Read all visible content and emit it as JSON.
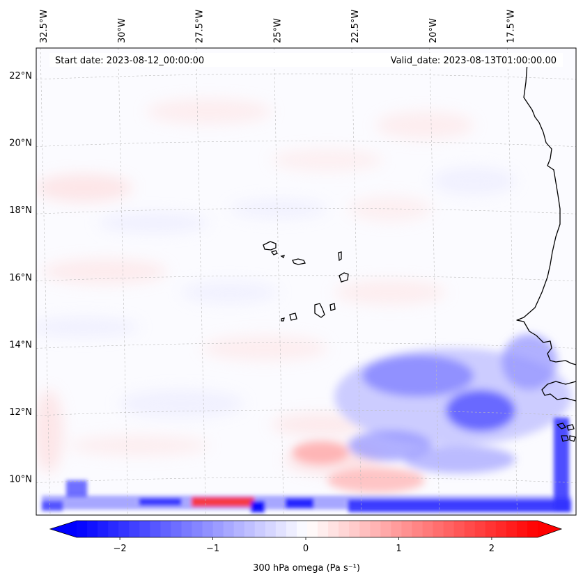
{
  "header": {
    "start_date": "Start date: 2023-08-12_00:00:00",
    "valid_date": "Valid_date: 2023-08-13T01:00:00.00"
  },
  "axes": {
    "longitude_labels": [
      "32.5°W",
      "30°W",
      "27.5°W",
      "25°W",
      "22.5°W",
      "20°W",
      "17.5°W"
    ],
    "latitude_labels": [
      "22°N",
      "20°N",
      "18°N",
      "16°N",
      "14°N",
      "12°N",
      "10°N"
    ],
    "longitudes_deg": [
      -32.5,
      -30,
      -27.5,
      -25,
      -22.5,
      -20,
      -17.5
    ],
    "latitudes_deg": [
      22,
      20,
      18,
      16,
      14,
      12,
      10
    ],
    "gridlines": true
  },
  "colorbar": {
    "label": "300 hPa omega (Pa s⁻¹)",
    "ticks": [
      "−2",
      "−1",
      "0",
      "1",
      "2"
    ],
    "tick_values": [
      -2,
      -1,
      0,
      1,
      2
    ],
    "range": [
      -2.75,
      2.75
    ],
    "colormap": "bwr",
    "extend": "both",
    "colors": {
      "low": "#0000ff",
      "mid": "#ffffff",
      "high": "#ff0000"
    }
  },
  "colors": {
    "coastline": "#000000",
    "grid": "#bbbbbb",
    "background": "#fbfbff"
  }
}
